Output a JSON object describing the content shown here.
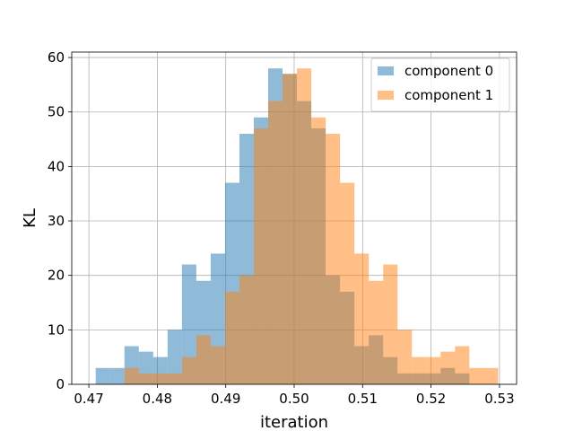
{
  "chart_data": {
    "type": "bar",
    "title": "",
    "xlabel": "iteration",
    "ylabel": "KL",
    "xlim": [
      0.4675,
      0.5325
    ],
    "ylim": [
      0,
      61
    ],
    "xticks": [
      0.47,
      0.48,
      0.49,
      0.5,
      0.51,
      0.52,
      0.53
    ],
    "xtick_labels": [
      "0.47",
      "0.48",
      "0.49",
      "0.50",
      "0.51",
      "0.52",
      "0.53"
    ],
    "yticks": [
      0,
      10,
      20,
      30,
      40,
      50,
      60
    ],
    "ytick_labels": [
      "0",
      "10",
      "20",
      "30",
      "40",
      "50",
      "60"
    ],
    "grid": true,
    "legend_position": "top-right",
    "series": [
      {
        "name": "component 0",
        "color": "#1f77b4",
        "opacity": 0.5,
        "bin_edges": [
          0.471,
          0.4731,
          0.4752,
          0.4773,
          0.4794,
          0.4815,
          0.4836,
          0.4857,
          0.4878,
          0.4899,
          0.492,
          0.4941,
          0.4962,
          0.4983,
          0.5004,
          0.5025,
          0.5046,
          0.5067,
          0.5088,
          0.5109,
          0.513,
          0.5151,
          0.5172,
          0.5193,
          0.5214,
          0.5235,
          0.5256
        ],
        "values": [
          3,
          3,
          7,
          6,
          5,
          10,
          22,
          19,
          24,
          37,
          46,
          49,
          58,
          57,
          52,
          47,
          20,
          17,
          7,
          9,
          5,
          2,
          2,
          2,
          3,
          2
        ]
      },
      {
        "name": "component 1",
        "color": "#ff7f0e",
        "opacity": 0.5,
        "bin_edges": [
          0.4752,
          0.4773,
          0.4794,
          0.4815,
          0.4836,
          0.4857,
          0.4878,
          0.4899,
          0.492,
          0.4941,
          0.4962,
          0.4983,
          0.5004,
          0.5025,
          0.5046,
          0.5067,
          0.5088,
          0.5109,
          0.513,
          0.5151,
          0.5172,
          0.5193,
          0.5214,
          0.5235,
          0.5256,
          0.5277,
          0.5298
        ],
        "values": [
          3,
          2,
          2,
          2,
          5,
          9,
          7,
          17,
          20,
          47,
          52,
          57,
          58,
          49,
          46,
          37,
          24,
          19,
          22,
          10,
          5,
          5,
          6,
          7,
          3,
          3
        ]
      }
    ]
  }
}
